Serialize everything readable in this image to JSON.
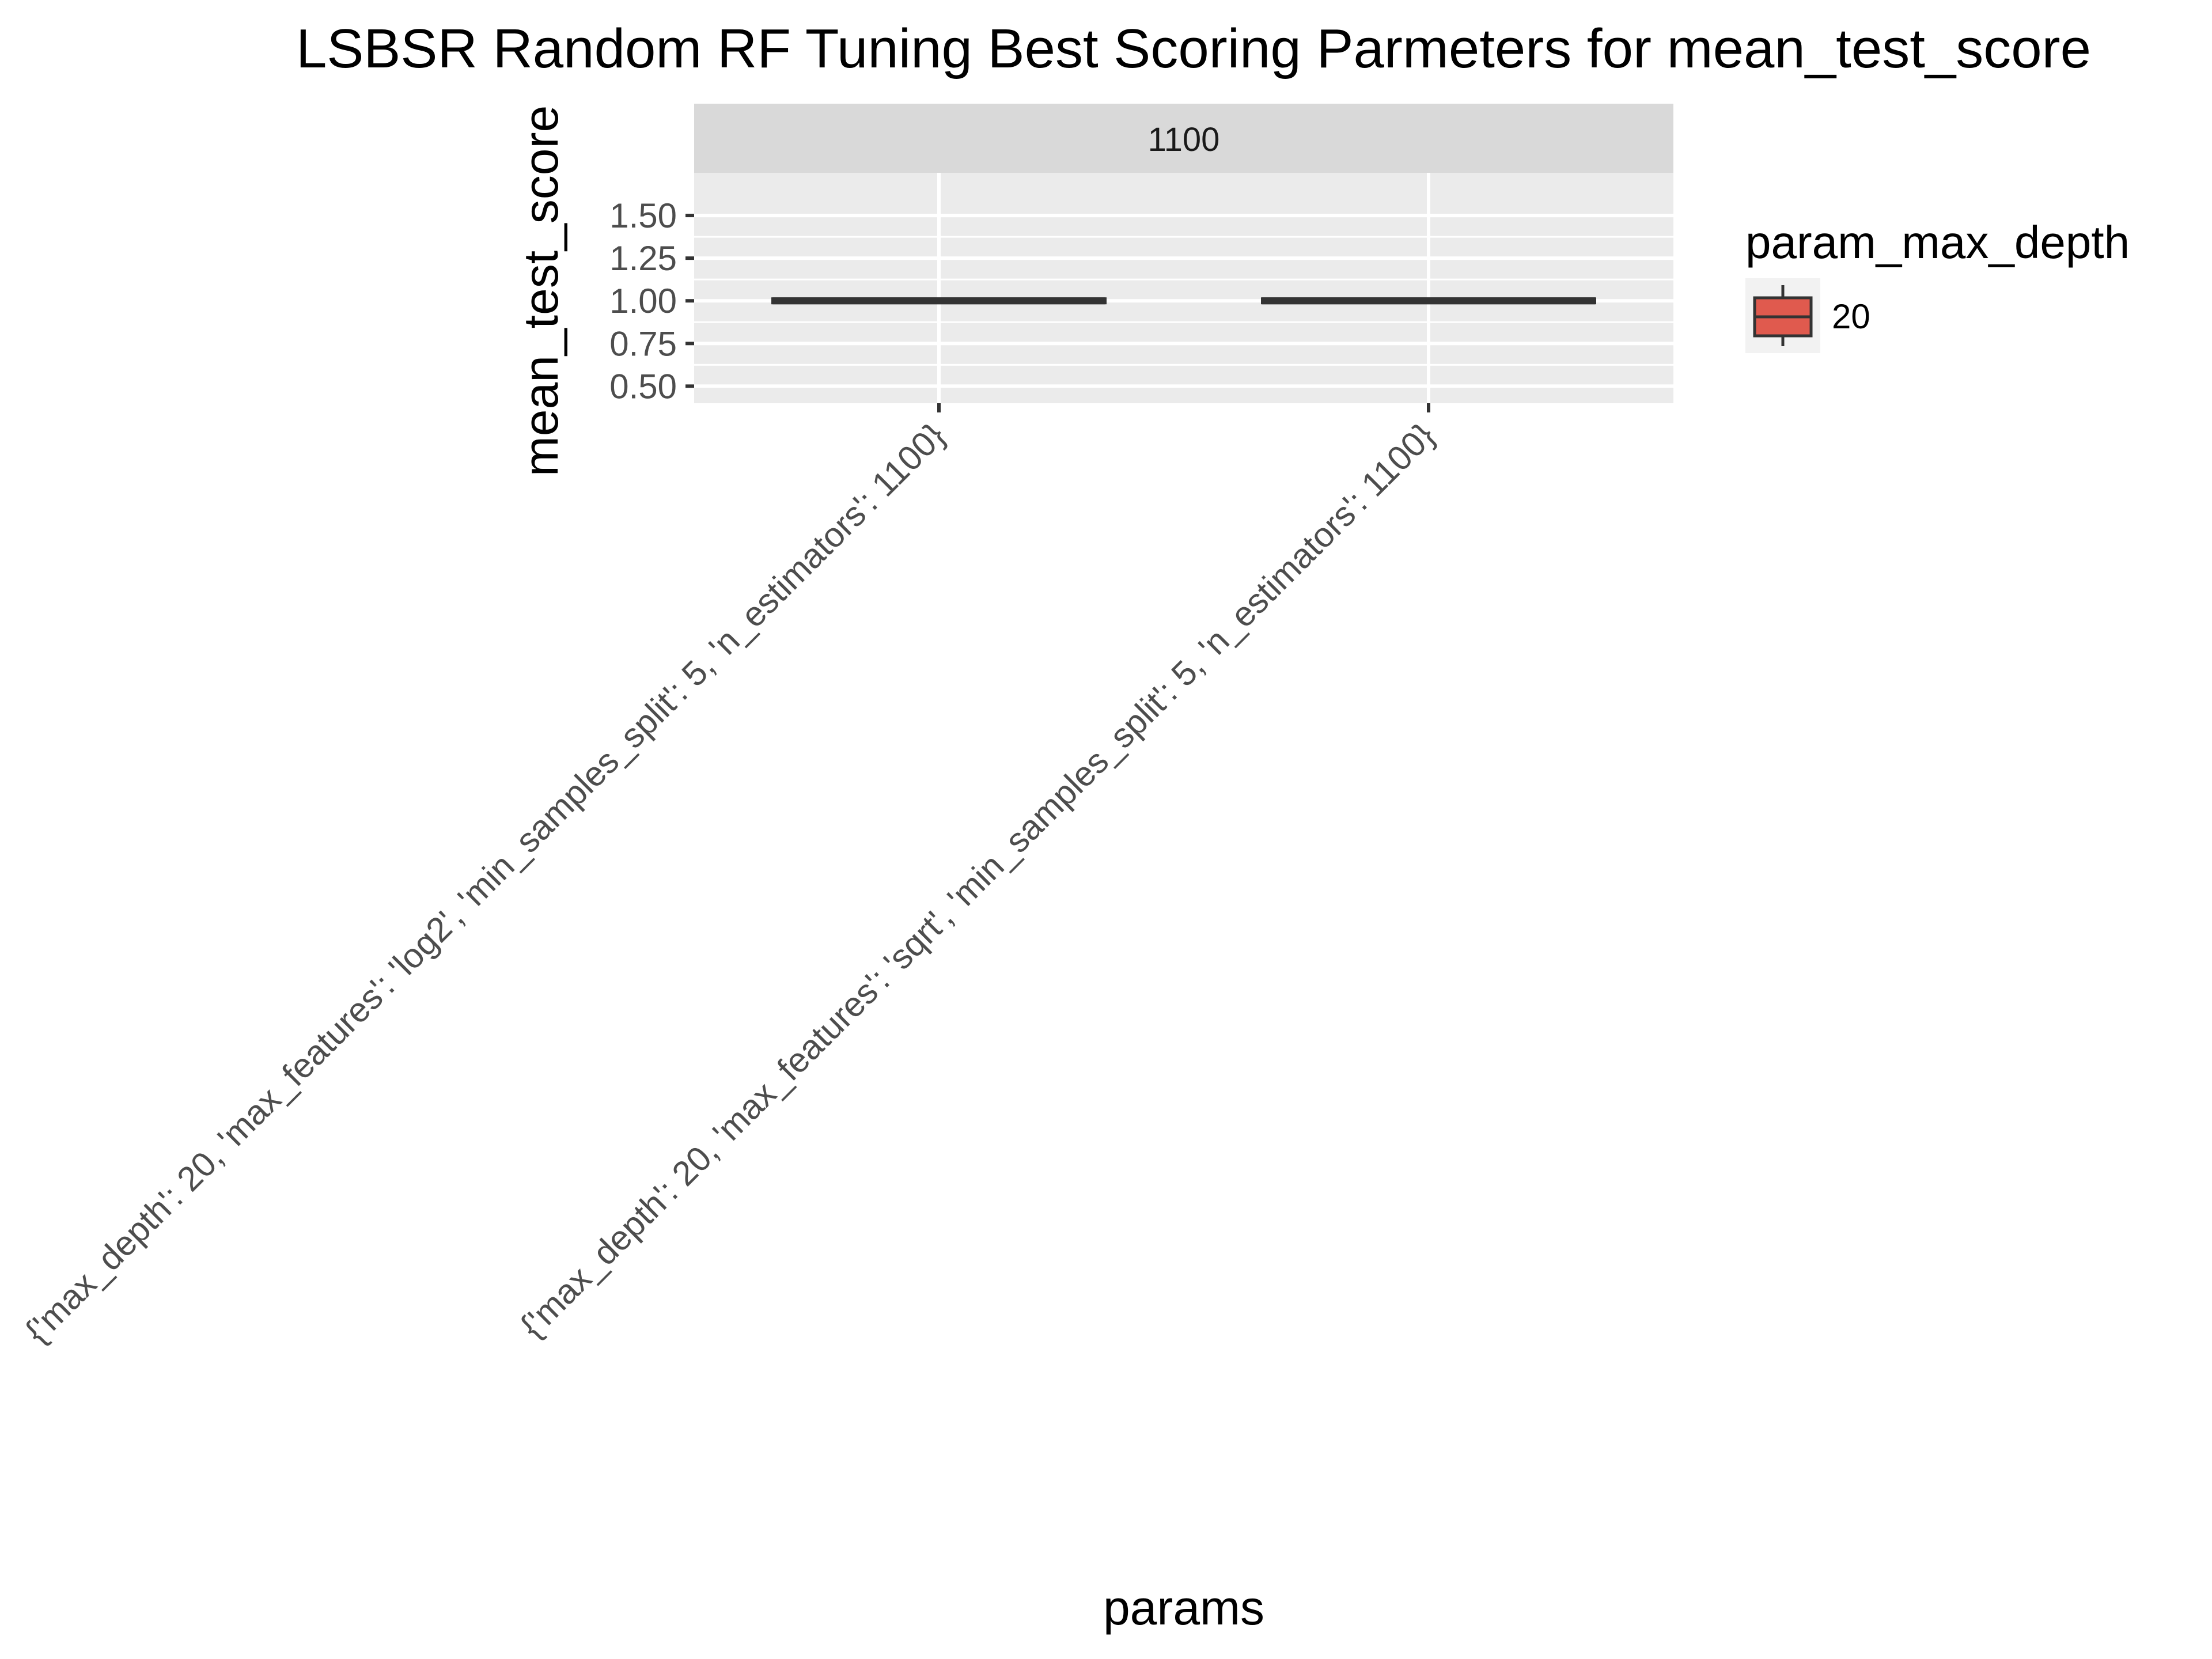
{
  "chart_data": {
    "type": "boxplot",
    "title": "LSBSR Random RF Tuning Best Scoring Parmeters for mean_test_score",
    "xlabel": "params",
    "ylabel": "mean_test_score",
    "facet": "1100",
    "categories": [
      "{'max_depth': 20, 'max_features': 'log2', 'min_samples_split': 5, 'n_estimators': 1100}",
      "{'max_depth': 20, 'max_features': 'sqrt', 'min_samples_split': 5, 'n_estimators': 1100}"
    ],
    "values": [
      1.0,
      1.0
    ],
    "yticks": [
      0.5,
      0.75,
      1.0,
      1.25,
      1.5
    ],
    "ytick_labels": [
      "0.50",
      "0.75",
      "1.00",
      "1.25",
      "1.50"
    ],
    "ylim": [
      0.5,
      1.5
    ],
    "grid": true,
    "legend": {
      "title": "param_max_depth",
      "placement": "right",
      "entries": [
        {
          "label": "20",
          "color": "#e05a4e"
        }
      ]
    }
  },
  "colors": {
    "panel_bg": "#ebebeb",
    "strip_bg": "#d9d9d9",
    "grid_line": "#ffffff",
    "box_line": "#333333",
    "fill": "#e05a4e"
  }
}
